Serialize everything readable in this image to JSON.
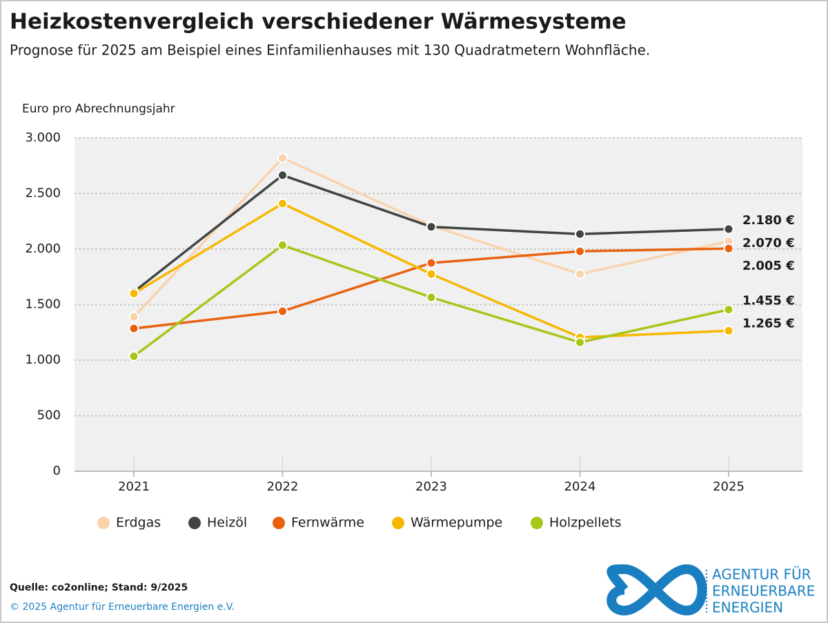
{
  "chart_data": {
    "type": "line",
    "title": "Heizkostenvergleich verschiedener Wärmesysteme",
    "subtitle": "Prognose für 2025 am Beispiel eines Einfamilienhauses mit 130 Quadratmetern Wohnfläche.",
    "y_label": "Euro pro Abrechnungsjahr",
    "categories": [
      "2021",
      "2022",
      "2023",
      "2024",
      "2025"
    ],
    "series": [
      {
        "name": "Erdgas",
        "color": "#f9d3ac",
        "values": [
          1390,
          2820,
          2210,
          1775,
          2070
        ],
        "value_labels": [
          null,
          null,
          null,
          null,
          "2.070 €"
        ]
      },
      {
        "name": "Heizöl",
        "color": "#404543",
        "values": [
          1615,
          2665,
          2200,
          2135,
          2180
        ],
        "value_labels": [
          null,
          null,
          null,
          null,
          "2.180 €"
        ]
      },
      {
        "name": "Fernwärme",
        "color": "#e8620f",
        "values": [
          1285,
          1440,
          1875,
          1980,
          2005
        ],
        "value_labels": [
          null,
          null,
          null,
          null,
          "2.005 €"
        ]
      },
      {
        "name": "Wärmepumpe",
        "color": "#f6b800",
        "values": [
          1600,
          2410,
          1775,
          1205,
          1265
        ],
        "value_labels": [
          null,
          null,
          null,
          null,
          "1.265 €"
        ]
      },
      {
        "name": "Holzpellets",
        "color": "#a7c61a",
        "values": [
          1035,
          2035,
          1565,
          1160,
          1455
        ],
        "value_labels": [
          null,
          null,
          null,
          null,
          "1.455 €"
        ]
      }
    ],
    "ylim": [
      0,
      3000
    ],
    "yticks": [
      0,
      500,
      {
        "value": 1000,
        "label": "1.000"
      },
      {
        "value": 1500,
        "label": "1.500"
      },
      {
        "value": 2000,
        "label": "2.000"
      },
      {
        "value": 2500,
        "label": "2.500"
      },
      {
        "value": 3000,
        "label": "3.000"
      }
    ],
    "grid": true,
    "legend": "bottom"
  },
  "source": "Quelle: co2online; Stand: 9/2025",
  "copyright": "© 2025 Agentur für Erneuerbare Energien e.V.",
  "logo": {
    "lines": [
      "AGENTUR FÜR",
      "ERNEUERBARE",
      "ENERGIEN"
    ]
  }
}
